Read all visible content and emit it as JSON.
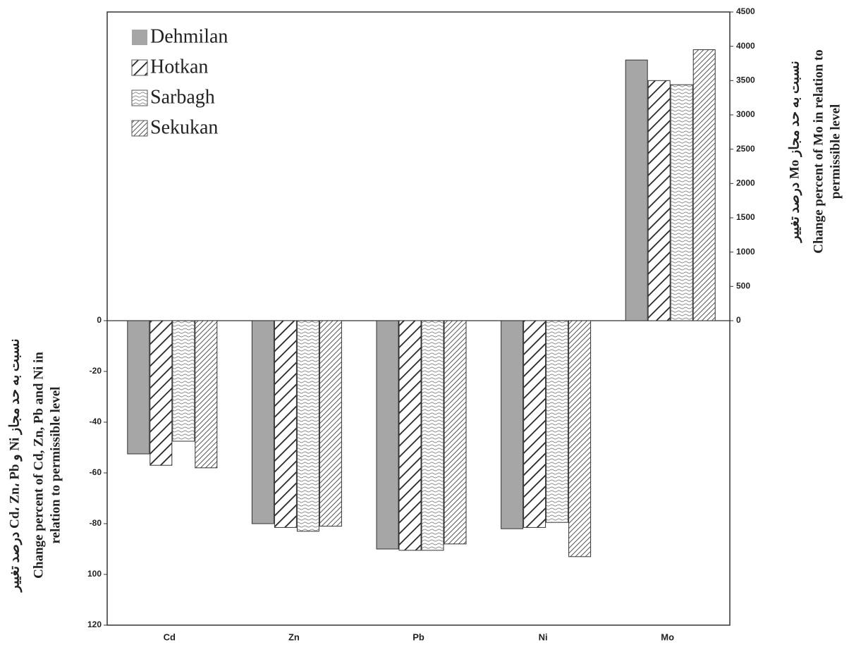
{
  "chart_data": [
    {
      "type": "bar",
      "categories": [
        "Cd",
        "Zn",
        "Pb",
        "Ni"
      ],
      "ylabel": [
        "درصد تغییر Cd، Zn، Pb و Ni نسبت به حد مجاز",
        "Change percent of Cd, Zn, Pb and Ni in",
        "relation to permissible level"
      ],
      "ylim": [
        -120,
        0
      ],
      "yticks": [
        0,
        -20,
        -40,
        -60,
        -80,
        {
          "value": -100,
          "label": "100"
        },
        {
          "value": -120,
          "label": "120"
        }
      ],
      "legend": "upper left",
      "series": [
        {
          "name": "Dehmilan",
          "color": "#a6a6a6",
          "pattern": "solid",
          "values": [
            -52.5,
            -80,
            -90,
            -82
          ]
        },
        {
          "name": "Hotkan",
          "color": "#222222",
          "pattern": "diagonal",
          "values": [
            -57,
            -81.5,
            -90.5,
            -81.5
          ]
        },
        {
          "name": "Sarbagh",
          "color": "#8c8c8c",
          "pattern": "wavy",
          "values": [
            -47.5,
            -83,
            -90.5,
            -79.5
          ]
        },
        {
          "name": "Sekukan",
          "color": "#555555",
          "pattern": "dense-diagonal",
          "values": [
            -58,
            -81,
            -88,
            -93
          ]
        }
      ]
    },
    {
      "type": "bar",
      "categories": [
        "Mo"
      ],
      "y2label": [
        "درصد تغییر Mo نسبت به حد مجاز",
        "Change percent of Mo in relation to",
        "permissible level"
      ],
      "y2lim": [
        0,
        4500
      ],
      "y2ticks": [
        0,
        500,
        1000,
        1500,
        2000,
        2500,
        3000,
        3500,
        4000,
        4500
      ],
      "series": [
        {
          "axis": "y2",
          "color": "#a6a6a6",
          "pattern": "solid",
          "values": [
            3800
          ]
        },
        {
          "axis": "y2",
          "color": "#222222",
          "pattern": "diagonal",
          "values": [
            3500
          ]
        },
        {
          "axis": "y2",
          "color": "#8c8c8c",
          "pattern": "wavy",
          "values": [
            3440
          ]
        },
        {
          "axis": "y2",
          "color": "#555555",
          "pattern": "dense-diagonal",
          "values": [
            3950
          ]
        }
      ]
    }
  ]
}
